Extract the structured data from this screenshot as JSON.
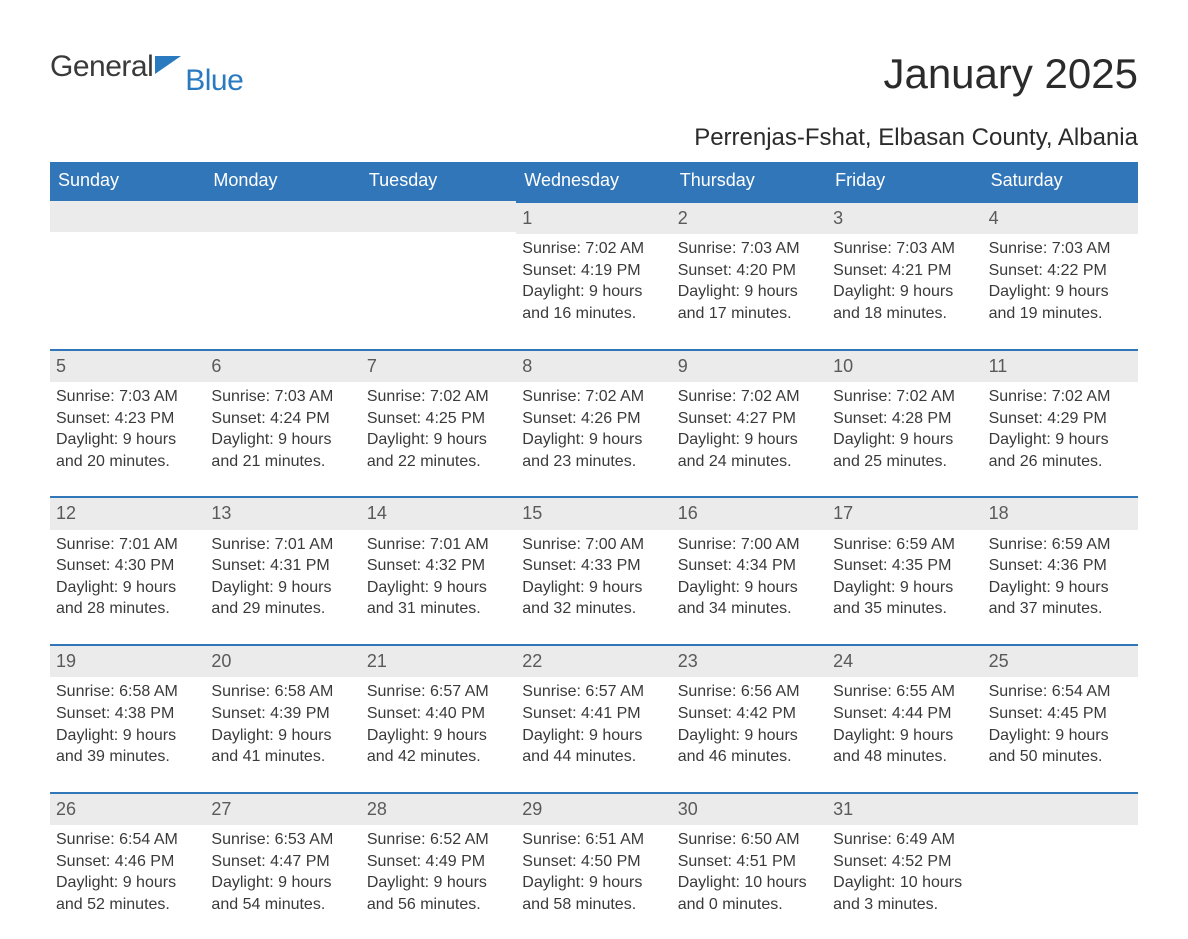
{
  "brand": {
    "part1": "General",
    "part2": "Blue",
    "flag_color": "#2a7abf"
  },
  "title": "January 2025",
  "location": "Perrenjas-Fshat, Elbasan County, Albania",
  "colors": {
    "header_bg": "#3176b9",
    "header_text": "#ffffff",
    "daynum_bg": "#ebebeb",
    "border": "#3176b9",
    "text": "#3a3a3a"
  },
  "day_headers": [
    "Sunday",
    "Monday",
    "Tuesday",
    "Wednesday",
    "Thursday",
    "Friday",
    "Saturday"
  ],
  "weeks": [
    [
      null,
      null,
      null,
      {
        "n": "1",
        "sunrise": "Sunrise: 7:02 AM",
        "sunset": "Sunset: 4:19 PM",
        "d1": "Daylight: 9 hours",
        "d2": "and 16 minutes."
      },
      {
        "n": "2",
        "sunrise": "Sunrise: 7:03 AM",
        "sunset": "Sunset: 4:20 PM",
        "d1": "Daylight: 9 hours",
        "d2": "and 17 minutes."
      },
      {
        "n": "3",
        "sunrise": "Sunrise: 7:03 AM",
        "sunset": "Sunset: 4:21 PM",
        "d1": "Daylight: 9 hours",
        "d2": "and 18 minutes."
      },
      {
        "n": "4",
        "sunrise": "Sunrise: 7:03 AM",
        "sunset": "Sunset: 4:22 PM",
        "d1": "Daylight: 9 hours",
        "d2": "and 19 minutes."
      }
    ],
    [
      {
        "n": "5",
        "sunrise": "Sunrise: 7:03 AM",
        "sunset": "Sunset: 4:23 PM",
        "d1": "Daylight: 9 hours",
        "d2": "and 20 minutes."
      },
      {
        "n": "6",
        "sunrise": "Sunrise: 7:03 AM",
        "sunset": "Sunset: 4:24 PM",
        "d1": "Daylight: 9 hours",
        "d2": "and 21 minutes."
      },
      {
        "n": "7",
        "sunrise": "Sunrise: 7:02 AM",
        "sunset": "Sunset: 4:25 PM",
        "d1": "Daylight: 9 hours",
        "d2": "and 22 minutes."
      },
      {
        "n": "8",
        "sunrise": "Sunrise: 7:02 AM",
        "sunset": "Sunset: 4:26 PM",
        "d1": "Daylight: 9 hours",
        "d2": "and 23 minutes."
      },
      {
        "n": "9",
        "sunrise": "Sunrise: 7:02 AM",
        "sunset": "Sunset: 4:27 PM",
        "d1": "Daylight: 9 hours",
        "d2": "and 24 minutes."
      },
      {
        "n": "10",
        "sunrise": "Sunrise: 7:02 AM",
        "sunset": "Sunset: 4:28 PM",
        "d1": "Daylight: 9 hours",
        "d2": "and 25 minutes."
      },
      {
        "n": "11",
        "sunrise": "Sunrise: 7:02 AM",
        "sunset": "Sunset: 4:29 PM",
        "d1": "Daylight: 9 hours",
        "d2": "and 26 minutes."
      }
    ],
    [
      {
        "n": "12",
        "sunrise": "Sunrise: 7:01 AM",
        "sunset": "Sunset: 4:30 PM",
        "d1": "Daylight: 9 hours",
        "d2": "and 28 minutes."
      },
      {
        "n": "13",
        "sunrise": "Sunrise: 7:01 AM",
        "sunset": "Sunset: 4:31 PM",
        "d1": "Daylight: 9 hours",
        "d2": "and 29 minutes."
      },
      {
        "n": "14",
        "sunrise": "Sunrise: 7:01 AM",
        "sunset": "Sunset: 4:32 PM",
        "d1": "Daylight: 9 hours",
        "d2": "and 31 minutes."
      },
      {
        "n": "15",
        "sunrise": "Sunrise: 7:00 AM",
        "sunset": "Sunset: 4:33 PM",
        "d1": "Daylight: 9 hours",
        "d2": "and 32 minutes."
      },
      {
        "n": "16",
        "sunrise": "Sunrise: 7:00 AM",
        "sunset": "Sunset: 4:34 PM",
        "d1": "Daylight: 9 hours",
        "d2": "and 34 minutes."
      },
      {
        "n": "17",
        "sunrise": "Sunrise: 6:59 AM",
        "sunset": "Sunset: 4:35 PM",
        "d1": "Daylight: 9 hours",
        "d2": "and 35 minutes."
      },
      {
        "n": "18",
        "sunrise": "Sunrise: 6:59 AM",
        "sunset": "Sunset: 4:36 PM",
        "d1": "Daylight: 9 hours",
        "d2": "and 37 minutes."
      }
    ],
    [
      {
        "n": "19",
        "sunrise": "Sunrise: 6:58 AM",
        "sunset": "Sunset: 4:38 PM",
        "d1": "Daylight: 9 hours",
        "d2": "and 39 minutes."
      },
      {
        "n": "20",
        "sunrise": "Sunrise: 6:58 AM",
        "sunset": "Sunset: 4:39 PM",
        "d1": "Daylight: 9 hours",
        "d2": "and 41 minutes."
      },
      {
        "n": "21",
        "sunrise": "Sunrise: 6:57 AM",
        "sunset": "Sunset: 4:40 PM",
        "d1": "Daylight: 9 hours",
        "d2": "and 42 minutes."
      },
      {
        "n": "22",
        "sunrise": "Sunrise: 6:57 AM",
        "sunset": "Sunset: 4:41 PM",
        "d1": "Daylight: 9 hours",
        "d2": "and 44 minutes."
      },
      {
        "n": "23",
        "sunrise": "Sunrise: 6:56 AM",
        "sunset": "Sunset: 4:42 PM",
        "d1": "Daylight: 9 hours",
        "d2": "and 46 minutes."
      },
      {
        "n": "24",
        "sunrise": "Sunrise: 6:55 AM",
        "sunset": "Sunset: 4:44 PM",
        "d1": "Daylight: 9 hours",
        "d2": "and 48 minutes."
      },
      {
        "n": "25",
        "sunrise": "Sunrise: 6:54 AM",
        "sunset": "Sunset: 4:45 PM",
        "d1": "Daylight: 9 hours",
        "d2": "and 50 minutes."
      }
    ],
    [
      {
        "n": "26",
        "sunrise": "Sunrise: 6:54 AM",
        "sunset": "Sunset: 4:46 PM",
        "d1": "Daylight: 9 hours",
        "d2": "and 52 minutes."
      },
      {
        "n": "27",
        "sunrise": "Sunrise: 6:53 AM",
        "sunset": "Sunset: 4:47 PM",
        "d1": "Daylight: 9 hours",
        "d2": "and 54 minutes."
      },
      {
        "n": "28",
        "sunrise": "Sunrise: 6:52 AM",
        "sunset": "Sunset: 4:49 PM",
        "d1": "Daylight: 9 hours",
        "d2": "and 56 minutes."
      },
      {
        "n": "29",
        "sunrise": "Sunrise: 6:51 AM",
        "sunset": "Sunset: 4:50 PM",
        "d1": "Daylight: 9 hours",
        "d2": "and 58 minutes."
      },
      {
        "n": "30",
        "sunrise": "Sunrise: 6:50 AM",
        "sunset": "Sunset: 4:51 PM",
        "d1": "Daylight: 10 hours",
        "d2": "and 0 minutes."
      },
      {
        "n": "31",
        "sunrise": "Sunrise: 6:49 AM",
        "sunset": "Sunset: 4:52 PM",
        "d1": "Daylight: 10 hours",
        "d2": "and 3 minutes."
      },
      null
    ]
  ]
}
